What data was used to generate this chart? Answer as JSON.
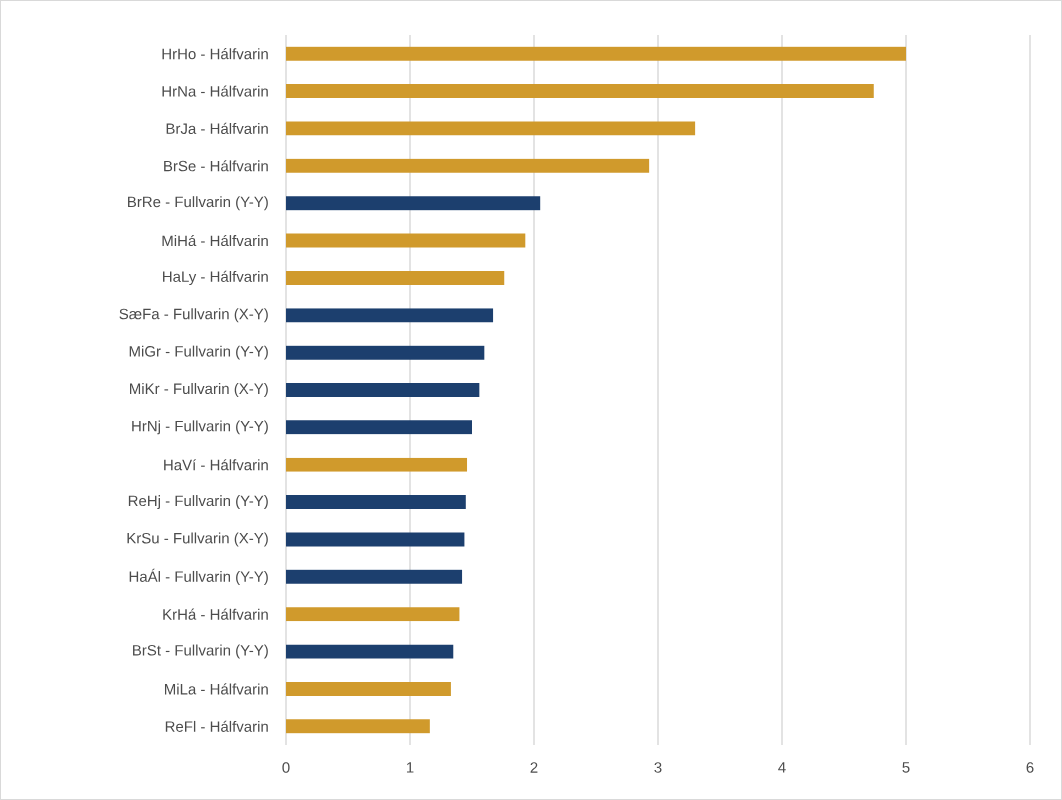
{
  "chart_data": {
    "type": "bar",
    "orientation": "horizontal",
    "categories": [
      "HrHo - Hálfvarin",
      "HrNa - Hálfvarin",
      "BrJa - Hálfvarin",
      "BrSe - Hálfvarin",
      "BrRe - Fullvarin (Y-Y)",
      "MiHá - Hálfvarin",
      "HaLy - Hálfvarin",
      "SæFa - Fullvarin (X-Y)",
      "MiGr - Fullvarin (Y-Y)",
      "MiKr - Fullvarin (X-Y)",
      "HrNj - Fullvarin (Y-Y)",
      "HaVí - Hálfvarin",
      "ReHj - Fullvarin (Y-Y)",
      "KrSu - Fullvarin (X-Y)",
      "HaÁl - Fullvarin (Y-Y)",
      "KrHá - Hálfvarin",
      "BrSt - Fullvarin (Y-Y)",
      "MiLa - Hálfvarin",
      "ReFl - Hálfvarin"
    ],
    "values": [
      5.0,
      4.74,
      3.3,
      2.93,
      2.05,
      1.93,
      1.76,
      1.67,
      1.6,
      1.56,
      1.5,
      1.46,
      1.45,
      1.44,
      1.42,
      1.4,
      1.35,
      1.33,
      1.16
    ],
    "colors": [
      "#d09a2c",
      "#d09a2c",
      "#d09a2c",
      "#d09a2c",
      "#1c3f6e",
      "#d09a2c",
      "#d09a2c",
      "#1c3f6e",
      "#1c3f6e",
      "#1c3f6e",
      "#1c3f6e",
      "#d09a2c",
      "#1c3f6e",
      "#1c3f6e",
      "#1c3f6e",
      "#d09a2c",
      "#1c3f6e",
      "#d09a2c",
      "#d09a2c"
    ],
    "xlim": [
      0,
      6
    ],
    "xticks": [
      0,
      1,
      2,
      3,
      4,
      5,
      6
    ],
    "grid": "x"
  }
}
